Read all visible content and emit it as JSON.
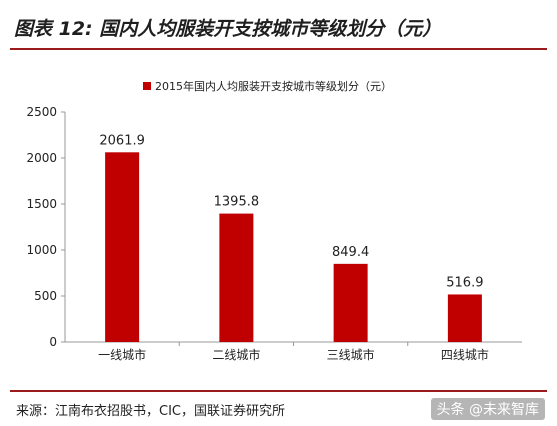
{
  "figure_title": "图表 12: 国内人均服装开支按城市等级划分（元）",
  "source": "来源：江南布衣招股书，CIC，国联证券研究所",
  "watermark": "头条 @未来智库",
  "colors": {
    "bar": "#c00000",
    "rule": "#9b1b1b",
    "axis": "#999999"
  },
  "chart_data": {
    "type": "bar",
    "title": "",
    "xlabel": "",
    "ylabel": "",
    "categories": [
      "一线城市",
      "二线城市",
      "三线城市",
      "四线城市"
    ],
    "series": [
      {
        "name": "2015年国内人均服装开支按城市等级划分（元）",
        "values": [
          2061.9,
          1395.8,
          849.4,
          516.9
        ]
      }
    ],
    "data_labels": [
      "2061.9",
      "1395.8",
      "849.4",
      "516.9"
    ],
    "ylim": [
      0,
      2500
    ],
    "yticks": [
      0,
      500,
      1000,
      1500,
      2000,
      2500
    ],
    "grid": false,
    "legend_position": "top-center"
  }
}
